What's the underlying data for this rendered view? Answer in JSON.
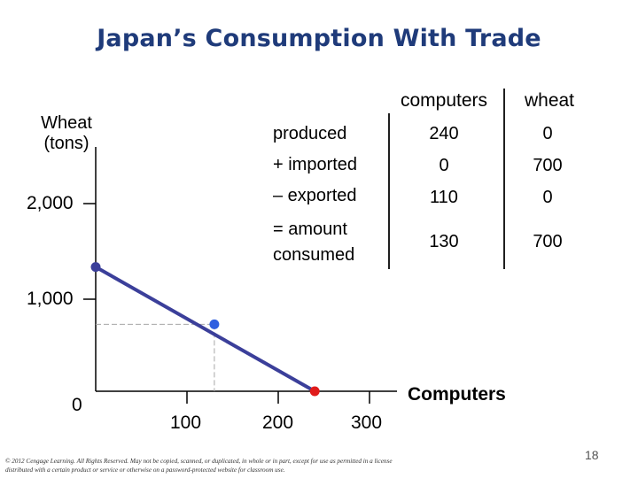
{
  "title": "Japan’s Consumption With Trade",
  "footer": {
    "copyright": "© 2012 Cengage Learning. All Rights Reserved. May not be copied, scanned, or duplicated, in whole or in part, except for use as permitted in a license distributed with a certain product or service or otherwise on a password-protected website for classroom use.",
    "page_number": "18"
  },
  "table": {
    "columns": [
      "computers",
      "wheat"
    ],
    "rows": [
      {
        "label": "produced",
        "values": [
          "240",
          "0"
        ]
      },
      {
        "label": "+ imported",
        "values": [
          "0",
          "700"
        ]
      },
      {
        "label": "– exported",
        "values": [
          "110",
          "0"
        ]
      },
      {
        "label": "= amount\nconsumed",
        "values": [
          "130",
          "700"
        ]
      }
    ]
  },
  "chart_data": {
    "type": "line",
    "title": "",
    "xlabel": "Computers",
    "ylabel": "Wheat\n(tons)",
    "x_ticks": [
      "0",
      "100",
      "200",
      "300"
    ],
    "y_ticks": [
      "2,000",
      "1,000"
    ],
    "xlim": [
      0,
      300
    ],
    "ylim": [
      0,
      2000
    ],
    "series": [
      {
        "color": "#3b3f9a",
        "x": [
          0,
          240
        ],
        "y": [
          1300,
          0
        ]
      }
    ],
    "points": [
      {
        "x": 0,
        "y": 1300,
        "color": "#3b3f9a"
      },
      {
        "x": 240,
        "y": 0,
        "color": "#e01b1b"
      },
      {
        "x": 130,
        "y": 700,
        "color": "#2f5fe0"
      }
    ],
    "guides": {
      "x": 130,
      "y": 700,
      "color": "#a6a6a6",
      "dashed": true
    },
    "grid": false
  }
}
